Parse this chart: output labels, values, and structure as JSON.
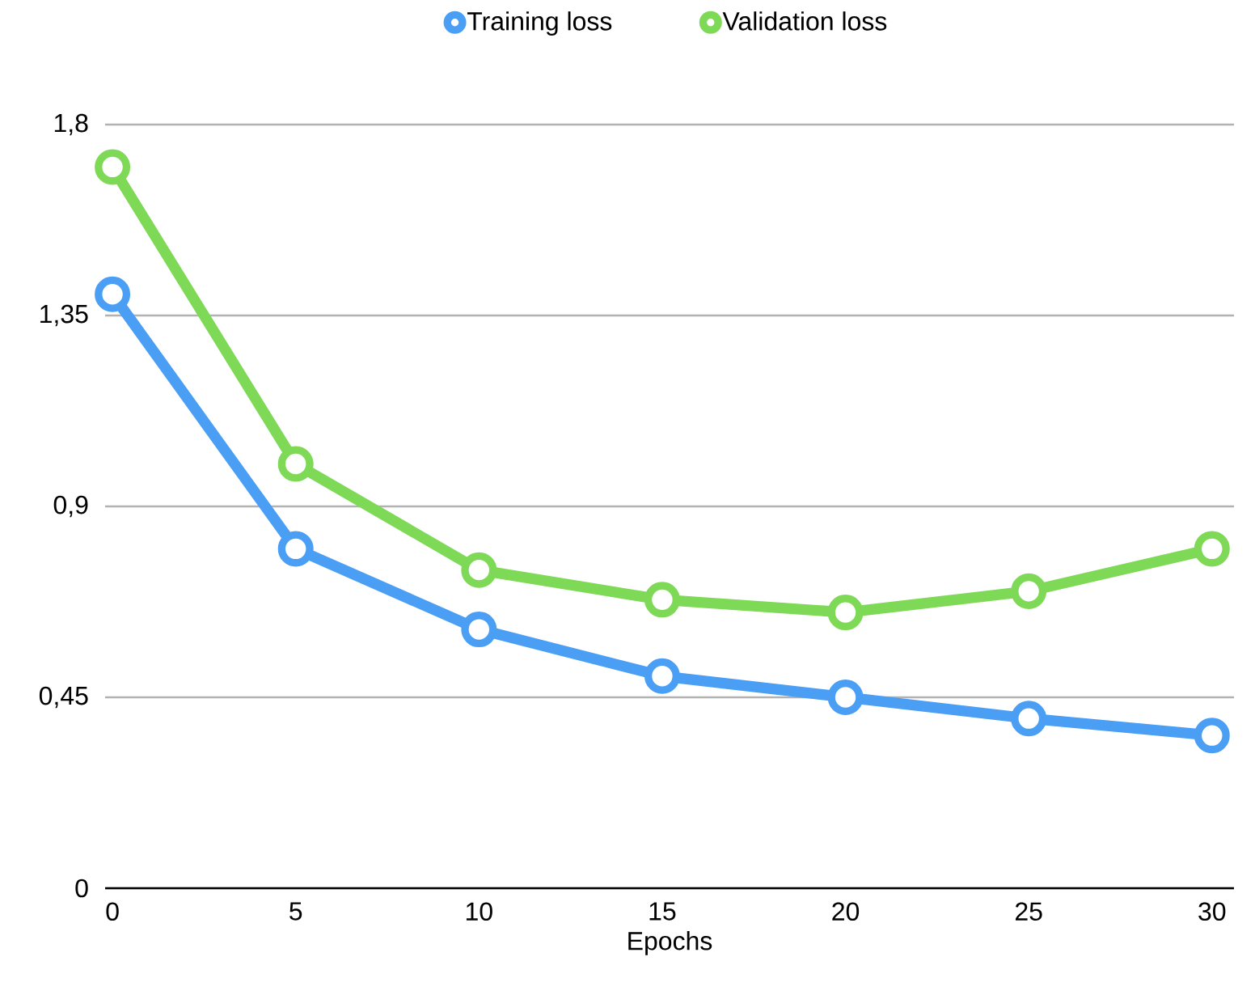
{
  "chart_data": {
    "type": "line",
    "xlabel": "Epochs",
    "x": [
      0,
      5,
      10,
      15,
      20,
      25,
      30
    ],
    "series": [
      {
        "name": "Training loss",
        "color": "#4a9ff5",
        "values": [
          1.4,
          0.8,
          0.61,
          0.5,
          0.45,
          0.4,
          0.36
        ]
      },
      {
        "name": "Validation loss",
        "color": "#7ed957",
        "values": [
          1.7,
          1.0,
          0.75,
          0.68,
          0.65,
          0.7,
          0.8
        ]
      }
    ],
    "xlim": [
      -0.2,
      30.6
    ],
    "ylim": [
      0,
      1.8
    ],
    "xticks": [
      0,
      5,
      10,
      15,
      20,
      25,
      30
    ],
    "yticks": [
      {
        "value": 0,
        "label": "0"
      },
      {
        "value": 0.45,
        "label": "0,45"
      },
      {
        "value": 0.9,
        "label": "0,9"
      },
      {
        "value": 1.35,
        "label": "1,35"
      },
      {
        "value": 1.8,
        "label": "1,8"
      }
    ],
    "grid": "y",
    "legend": "top",
    "marker": "circle",
    "line_style": "solid"
  }
}
